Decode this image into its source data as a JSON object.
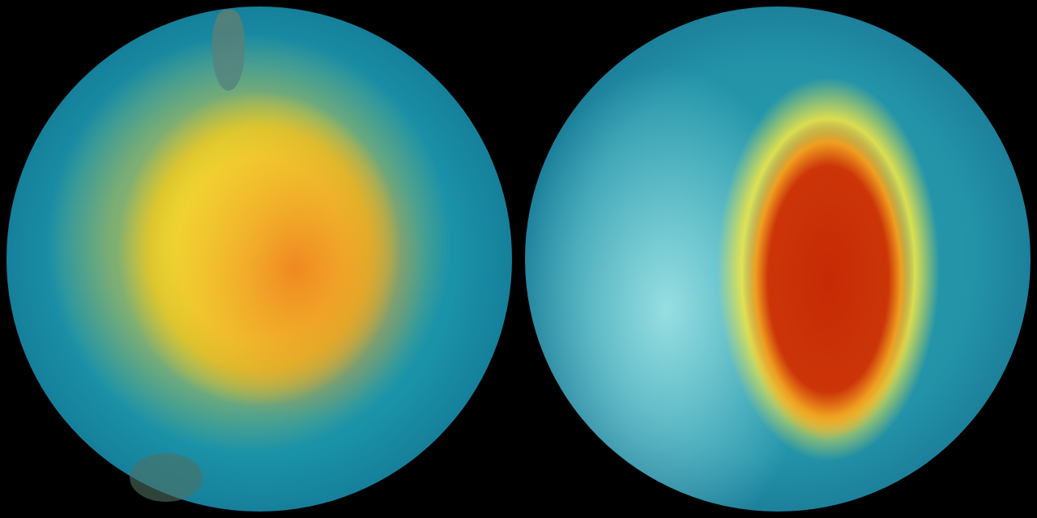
{
  "images": [
    {
      "name": "ozone-globe-left",
      "colors": {
        "ocean": "#1fa2b0",
        "high": "#f4ee3a",
        "peak": "#f07820"
      }
    },
    {
      "name": "ozone-globe-right",
      "colors": {
        "ocean": "#2aa0b0",
        "ring": "#f0e646",
        "core": "#c62a05",
        "land": "#aaebeb"
      }
    }
  ]
}
